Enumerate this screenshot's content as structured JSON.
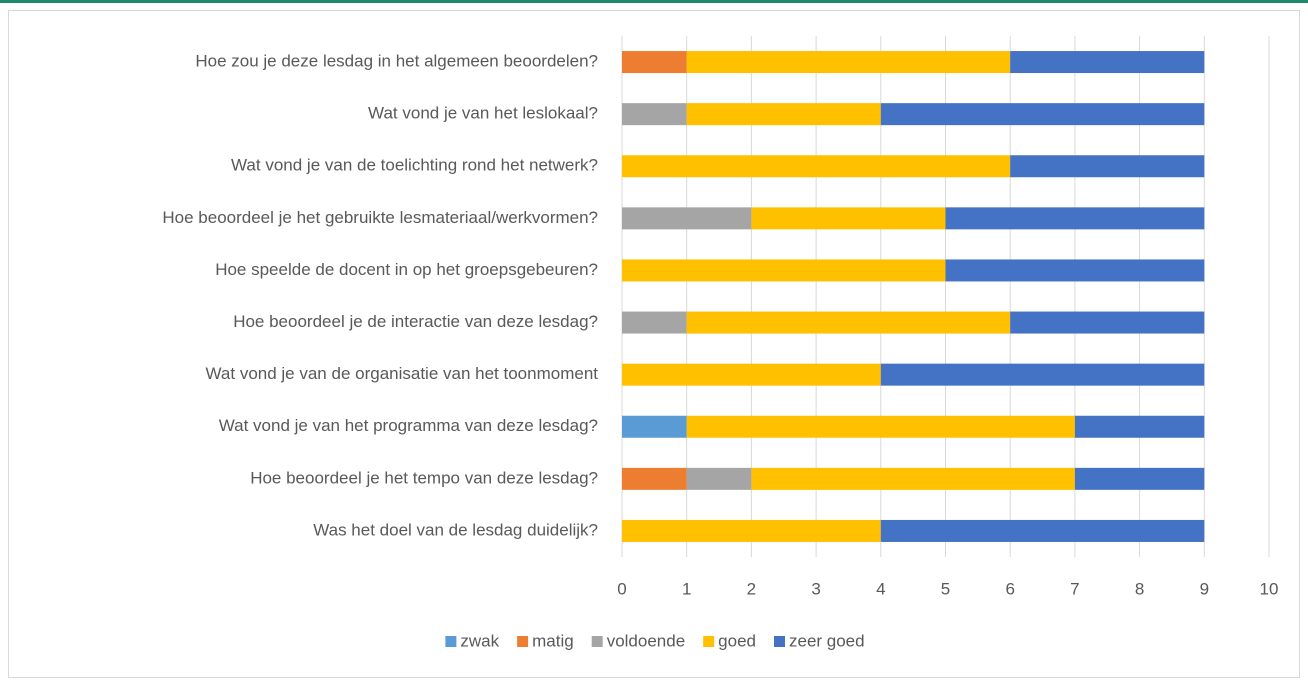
{
  "chart_data": {
    "type": "stacked-bar-horizontal",
    "categories": [
      "Hoe zou je deze lesdag in het algemeen beoordelen?",
      "Wat vond je van het leslokaal?",
      "Wat vond je van de toelichting rond het netwerk?",
      "Hoe beoordeel je het gebruikte lesmateriaal/werkvormen?",
      "Hoe speelde de docent in op het groepsgebeuren?",
      "Hoe beoordeel je de interactie van deze lesdag?",
      "Wat vond je van de organisatie van het toonmoment",
      "Wat vond je van het programma van deze lesdag?",
      "Hoe beoordeel je het tempo van deze lesdag?",
      "Was het doel van de lesdag duidelijk?"
    ],
    "series": [
      {
        "name": "zwak",
        "color": "#5b9bd5",
        "values": [
          0,
          0,
          0,
          0,
          0,
          0,
          0,
          1,
          0,
          0
        ]
      },
      {
        "name": "matig",
        "color": "#ed7d31",
        "values": [
          1,
          0,
          0,
          0,
          0,
          0,
          0,
          0,
          1,
          0
        ]
      },
      {
        "name": "voldoende",
        "color": "#a5a5a5",
        "values": [
          0,
          1,
          0,
          2,
          0,
          1,
          0,
          0,
          1,
          0
        ]
      },
      {
        "name": "goed",
        "color": "#ffc000",
        "values": [
          5,
          3,
          6,
          3,
          5,
          5,
          4,
          6,
          5,
          4
        ]
      },
      {
        "name": "zeer goed",
        "color": "#4472c4",
        "values": [
          3,
          5,
          3,
          4,
          4,
          3,
          5,
          2,
          2,
          5
        ]
      }
    ],
    "xlim": [
      0,
      10
    ],
    "xticks": [
      0,
      1,
      2,
      3,
      4,
      5,
      6,
      7,
      8,
      9,
      10
    ],
    "grid": true,
    "legend": "bottom"
  }
}
